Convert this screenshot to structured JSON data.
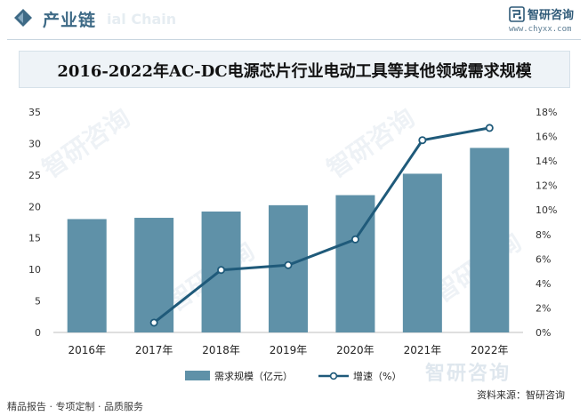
{
  "header": {
    "title": "产业链",
    "watermark": "ial Chain"
  },
  "logo": {
    "name": "智研咨询",
    "url": "www.chyxx.com"
  },
  "watermarks": {
    "tile_text": "智研咨询"
  },
  "footer": {
    "left_text": "精品报告 · 专项定制 · 品质服务",
    "brand_watermark": "智研咨询",
    "source": "资料来源：智研咨询"
  },
  "colors": {
    "bar": "#5f91a8",
    "line": "#1f5a7a",
    "header_accent": "#3e6a86"
  },
  "chart_data": {
    "type": "bar",
    "title": "2016-2022年AC-DC电源芯片行业电动工具等其他领域需求规模",
    "categories": [
      "2016年",
      "2017年",
      "2018年",
      "2019年",
      "2020年",
      "2021年",
      "2022年"
    ],
    "series": [
      {
        "name": "需求规模（亿元）",
        "type": "bar",
        "axis": "left",
        "values": [
          18.0,
          18.2,
          19.2,
          20.2,
          21.8,
          25.2,
          29.3
        ]
      },
      {
        "name": "增速（%）",
        "type": "line",
        "axis": "right",
        "values": [
          null,
          0.8,
          5.1,
          5.5,
          7.6,
          15.7,
          16.7
        ]
      }
    ],
    "ylim_left": [
      0,
      35
    ],
    "yticks_left": [
      "0",
      "5",
      "10",
      "15",
      "20",
      "25",
      "30",
      "35"
    ],
    "ylim_right": [
      0,
      18
    ],
    "yticks_right": [
      "0%",
      "2%",
      "4%",
      "6%",
      "8%",
      "10%",
      "12%",
      "14%",
      "16%",
      "18%"
    ],
    "grid": false,
    "legend": "bottom-center"
  }
}
